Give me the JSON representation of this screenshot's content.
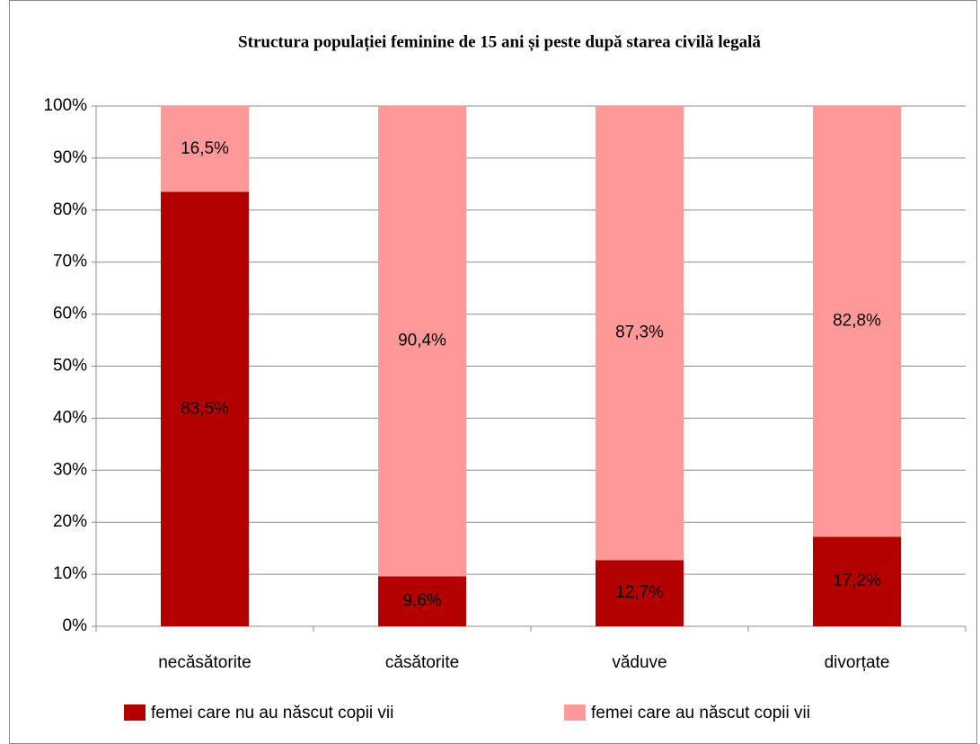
{
  "chart_data": {
    "type": "stacked_bar",
    "title": "Structura populației feminine de 15 ani și peste după starea civilă legală",
    "categories": [
      "necăsătorite",
      "căsătorite",
      "văduve",
      "divorțate"
    ],
    "series": [
      {
        "name": "femei care nu au născut copii vii",
        "color": "#b30000",
        "values": [
          83.5,
          9.6,
          12.7,
          17.2
        ],
        "value_labels": [
          "83,5%",
          "9,6%",
          "12,7%",
          "17,2%"
        ]
      },
      {
        "name": "femei care au născut copii vii",
        "color": "#ff9999",
        "values": [
          16.5,
          90.4,
          87.3,
          82.8
        ],
        "value_labels": [
          "16,5%",
          "90,4%",
          "87,3%",
          "82,8%"
        ]
      }
    ],
    "ylim": [
      0,
      100
    ],
    "yticks": [
      {
        "value": 0,
        "label": "0%"
      },
      {
        "value": 10,
        "label": "10%"
      },
      {
        "value": 20,
        "label": "20%"
      },
      {
        "value": 30,
        "label": "30%"
      },
      {
        "value": 40,
        "label": "40%"
      },
      {
        "value": 50,
        "label": "50%"
      },
      {
        "value": 60,
        "label": "60%"
      },
      {
        "value": 70,
        "label": "70%"
      },
      {
        "value": 80,
        "label": "80%"
      },
      {
        "value": 90,
        "label": "90%"
      },
      {
        "value": 100,
        "label": "100%"
      }
    ],
    "grid": true,
    "legend": "bottom"
  }
}
